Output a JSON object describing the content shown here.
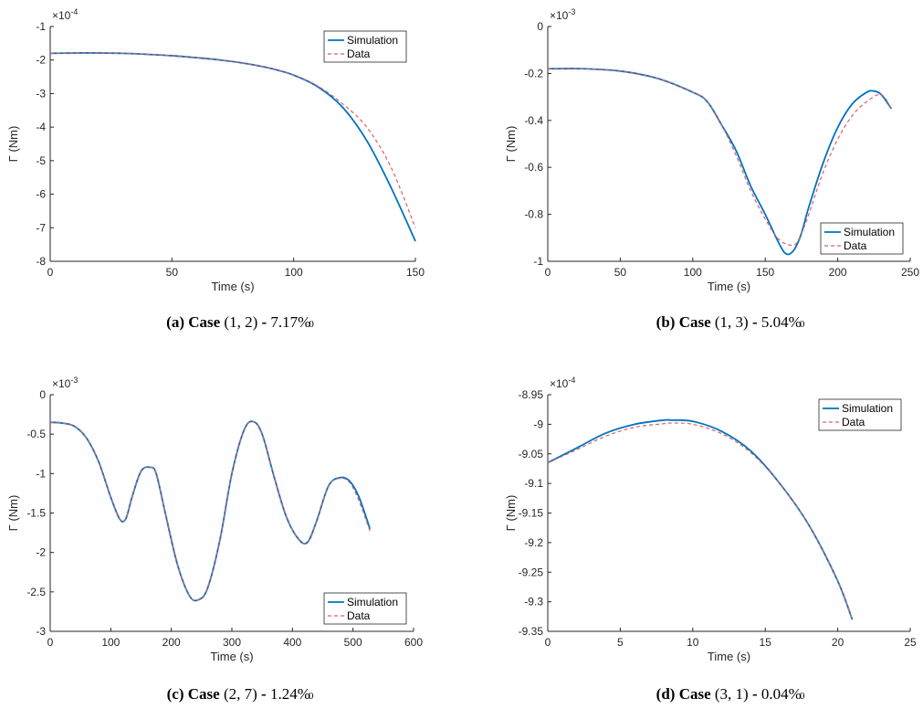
{
  "colors": {
    "simulation": "#0072BD",
    "data": "#D95F6A",
    "axis": "#262626"
  },
  "chart_data": [
    {
      "type": "line",
      "caption": {
        "tag": "(a)",
        "word": "Case",
        "args": "(1, 2)",
        "sep": " - ",
        "pct": "7.17%",
        "suffix": "0"
      },
      "xlabel": "Time (s)",
      "ylabel": "Γ (Nm)",
      "exponent_base": "×10",
      "exponent_power": "-4",
      "xlim": [
        0,
        150
      ],
      "ylim": [
        -8,
        -1
      ],
      "xticks": [
        0,
        50,
        100,
        150
      ],
      "xtick_labels": [
        "0",
        "50",
        "100",
        "150"
      ],
      "yticks": [
        -8,
        -7,
        -6,
        -5,
        -4,
        -3,
        -2,
        -1
      ],
      "ytick_labels": [
        "-8",
        "-7",
        "-6",
        "-5",
        "-4",
        "-3",
        "-2",
        "-1"
      ],
      "legend_position": "top-right",
      "series": [
        {
          "name": "Simulation",
          "style": "solid",
          "x": [
            0,
            10,
            20,
            30,
            40,
            50,
            60,
            70,
            80,
            90,
            100,
            110,
            120,
            130,
            140,
            150
          ],
          "y": [
            -1.8,
            -1.79,
            -1.79,
            -1.8,
            -1.83,
            -1.87,
            -1.93,
            -2.0,
            -2.1,
            -2.24,
            -2.45,
            -2.8,
            -3.4,
            -4.4,
            -5.8,
            -7.4
          ]
        },
        {
          "name": "Data",
          "style": "dashed",
          "x": [
            0,
            10,
            20,
            30,
            40,
            50,
            60,
            70,
            80,
            90,
            100,
            110,
            120,
            130,
            140,
            150
          ],
          "y": [
            -1.8,
            -1.79,
            -1.79,
            -1.8,
            -1.83,
            -1.87,
            -1.93,
            -2.0,
            -2.1,
            -2.24,
            -2.45,
            -2.78,
            -3.3,
            -4.0,
            -5.2,
            -7.0
          ]
        }
      ]
    },
    {
      "type": "line",
      "caption": {
        "tag": "(b)",
        "word": "Case",
        "args": "(1, 3)",
        "sep": " - ",
        "pct": "5.04%",
        "suffix": "0"
      },
      "xlabel": "Time (s)",
      "ylabel": "Γ (Nm)",
      "exponent_base": "×10",
      "exponent_power": "-3",
      "xlim": [
        0,
        250
      ],
      "ylim": [
        -1,
        0
      ],
      "xticks": [
        0,
        50,
        100,
        150,
        200,
        250
      ],
      "xtick_labels": [
        "0",
        "50",
        "100",
        "150",
        "200",
        "250"
      ],
      "yticks": [
        -1,
        -0.8,
        -0.6,
        -0.4,
        -0.2,
        0
      ],
      "ytick_labels": [
        "-1",
        "-0.8",
        "-0.6",
        "-0.4",
        "-0.2",
        "0"
      ],
      "legend_position": "bottom-right",
      "series": [
        {
          "name": "Simulation",
          "style": "solid",
          "x": [
            0,
            25,
            50,
            75,
            100,
            110,
            120,
            130,
            140,
            150,
            160,
            165,
            170,
            175,
            180,
            190,
            200,
            210,
            220,
            225,
            230,
            237
          ],
          "y": [
            -0.18,
            -0.18,
            -0.19,
            -0.22,
            -0.28,
            -0.32,
            -0.42,
            -0.53,
            -0.68,
            -0.8,
            -0.93,
            -0.97,
            -0.95,
            -0.88,
            -0.77,
            -0.58,
            -0.43,
            -0.33,
            -0.28,
            -0.275,
            -0.29,
            -0.35
          ]
        },
        {
          "name": "Data",
          "style": "dashed",
          "x": [
            0,
            25,
            50,
            75,
            100,
            110,
            120,
            130,
            140,
            150,
            160,
            170,
            175,
            180,
            190,
            200,
            210,
            220,
            230,
            237
          ],
          "y": [
            -0.18,
            -0.18,
            -0.19,
            -0.22,
            -0.28,
            -0.32,
            -0.42,
            -0.55,
            -0.7,
            -0.82,
            -0.91,
            -0.93,
            -0.88,
            -0.8,
            -0.62,
            -0.48,
            -0.38,
            -0.32,
            -0.29,
            -0.35
          ]
        }
      ]
    },
    {
      "type": "line",
      "caption": {
        "tag": "(c)",
        "word": "Case",
        "args": "(2, 7)",
        "sep": " - ",
        "pct": "1.24%",
        "suffix": "0"
      },
      "xlabel": "Time (s)",
      "ylabel": "Γ (Nm)",
      "exponent_base": "×10",
      "exponent_power": "-3",
      "xlim": [
        0,
        600
      ],
      "ylim": [
        -3,
        0
      ],
      "xticks": [
        0,
        100,
        200,
        300,
        400,
        500,
        600
      ],
      "xtick_labels": [
        "0",
        "100",
        "200",
        "300",
        "400",
        "500",
        "600"
      ],
      "yticks": [
        -3,
        -2.5,
        -2,
        -1.5,
        -1,
        -0.5,
        0
      ],
      "ytick_labels": [
        "-3",
        "-2.5",
        "-2",
        "-1.5",
        "-1",
        "-0.5",
        "0"
      ],
      "legend_position": "bottom-right",
      "series": [
        {
          "name": "Simulation",
          "style": "solid",
          "x": [
            0,
            20,
            40,
            60,
            80,
            100,
            115,
            125,
            135,
            150,
            165,
            175,
            190,
            210,
            230,
            245,
            260,
            280,
            300,
            320,
            335,
            350,
            370,
            390,
            410,
            425,
            440,
            460,
            480,
            495,
            510,
            528
          ],
          "y": [
            -0.35,
            -0.36,
            -0.4,
            -0.55,
            -0.85,
            -1.3,
            -1.58,
            -1.57,
            -1.3,
            -0.97,
            -0.92,
            -1.0,
            -1.5,
            -2.15,
            -2.55,
            -2.6,
            -2.45,
            -1.85,
            -1.0,
            -0.45,
            -0.34,
            -0.5,
            -1.05,
            -1.55,
            -1.83,
            -1.87,
            -1.6,
            -1.15,
            -1.05,
            -1.1,
            -1.3,
            -1.7
          ]
        },
        {
          "name": "Data",
          "style": "dashed",
          "x": [
            0,
            20,
            40,
            60,
            80,
            100,
            115,
            125,
            135,
            150,
            165,
            175,
            190,
            210,
            230,
            245,
            260,
            280,
            300,
            320,
            335,
            350,
            370,
            390,
            410,
            425,
            440,
            460,
            480,
            495,
            510,
            528
          ],
          "y": [
            -0.35,
            -0.36,
            -0.4,
            -0.55,
            -0.85,
            -1.3,
            -1.58,
            -1.57,
            -1.3,
            -0.97,
            -0.92,
            -1.0,
            -1.5,
            -2.15,
            -2.55,
            -2.6,
            -2.45,
            -1.85,
            -1.0,
            -0.45,
            -0.34,
            -0.5,
            -1.05,
            -1.55,
            -1.83,
            -1.87,
            -1.6,
            -1.15,
            -1.06,
            -1.12,
            -1.35,
            -1.73
          ]
        }
      ]
    },
    {
      "type": "line",
      "caption": {
        "tag": "(d)",
        "word": "Case",
        "args": "(3, 1)",
        "sep": " - ",
        "pct": "0.04%",
        "suffix": "0"
      },
      "xlabel": "Time (s)",
      "ylabel": "Γ (Nm)",
      "exponent_base": "×10",
      "exponent_power": "-4",
      "xlim": [
        0,
        25
      ],
      "ylim": [
        -9.35,
        -8.95
      ],
      "xticks": [
        0,
        5,
        10,
        15,
        20,
        25
      ],
      "xtick_labels": [
        "0",
        "5",
        "10",
        "15",
        "20",
        "25"
      ],
      "yticks": [
        -9.35,
        -9.3,
        -9.25,
        -9.2,
        -9.15,
        -9.1,
        -9.05,
        -9,
        -8.95
      ],
      "ytick_labels": [
        "-9.35",
        "-9.3",
        "-9.25",
        "-9.2",
        "-9.15",
        "-9.1",
        "-9.05",
        "-9",
        "-8.95"
      ],
      "legend_position": "top-right",
      "series": [
        {
          "name": "Simulation",
          "style": "solid",
          "x": [
            0,
            2,
            4,
            6,
            8,
            8.5,
            10,
            12,
            14,
            16,
            18,
            20,
            21
          ],
          "y": [
            -9.065,
            -9.04,
            -9.015,
            -9.0,
            -8.993,
            -8.993,
            -8.995,
            -9.012,
            -9.045,
            -9.1,
            -9.17,
            -9.265,
            -9.33
          ]
        },
        {
          "name": "Data",
          "style": "dashed",
          "x": [
            0,
            2,
            4,
            6,
            8,
            8.5,
            10,
            12,
            14,
            16,
            18,
            20,
            21
          ],
          "y": [
            -9.065,
            -9.043,
            -9.02,
            -9.005,
            -8.999,
            -8.998,
            -9.0,
            -9.016,
            -9.048,
            -9.1,
            -9.17,
            -9.265,
            -9.33
          ]
        }
      ]
    }
  ]
}
